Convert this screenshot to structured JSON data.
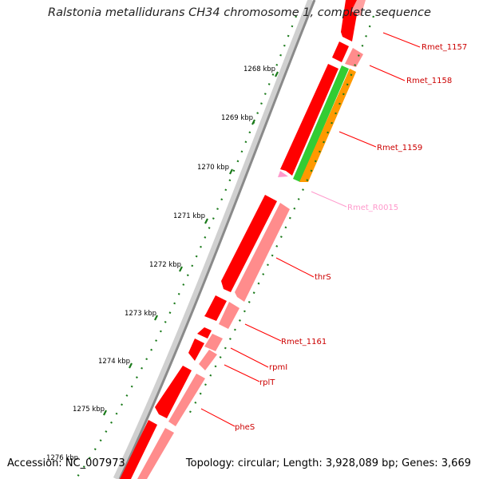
{
  "title": "Ralstonia metallidurans CH34 chromosome 1, complete sequence",
  "footer": {
    "accession": "Accession: NC_007973",
    "summary": "Topology: circular; Length: 3,928,089 bp; Genes: 3,669"
  },
  "colors": {
    "forward_cds": "#ff0000",
    "reverse_cds": "#ff8c8c",
    "trna": "#ff99cc",
    "label_line": "#ff0000",
    "tick": "#1a7a1a",
    "backbone": "#8a8a8a",
    "green_feature": "#33cc33",
    "orange_feature": "#ff9900"
  },
  "ticks": [
    {
      "label": "1268 kbp"
    },
    {
      "label": "1269 kbp"
    },
    {
      "label": "1270 kbp"
    },
    {
      "label": "1271 kbp"
    },
    {
      "label": "1272 kbp"
    },
    {
      "label": "1273 kbp"
    },
    {
      "label": "1274 kbp"
    },
    {
      "label": "1275 kbp"
    },
    {
      "label": "1276 kbp"
    }
  ],
  "genes": [
    {
      "name": "Rmet_1157"
    },
    {
      "name": "Rmet_1158"
    },
    {
      "name": "Rmet_1159"
    },
    {
      "name": "Rmet_R0015"
    },
    {
      "name": "thrS"
    },
    {
      "name": "Rmet_1161"
    },
    {
      "name": "rpmI"
    },
    {
      "name": "rplT"
    },
    {
      "name": "pheS"
    }
  ]
}
